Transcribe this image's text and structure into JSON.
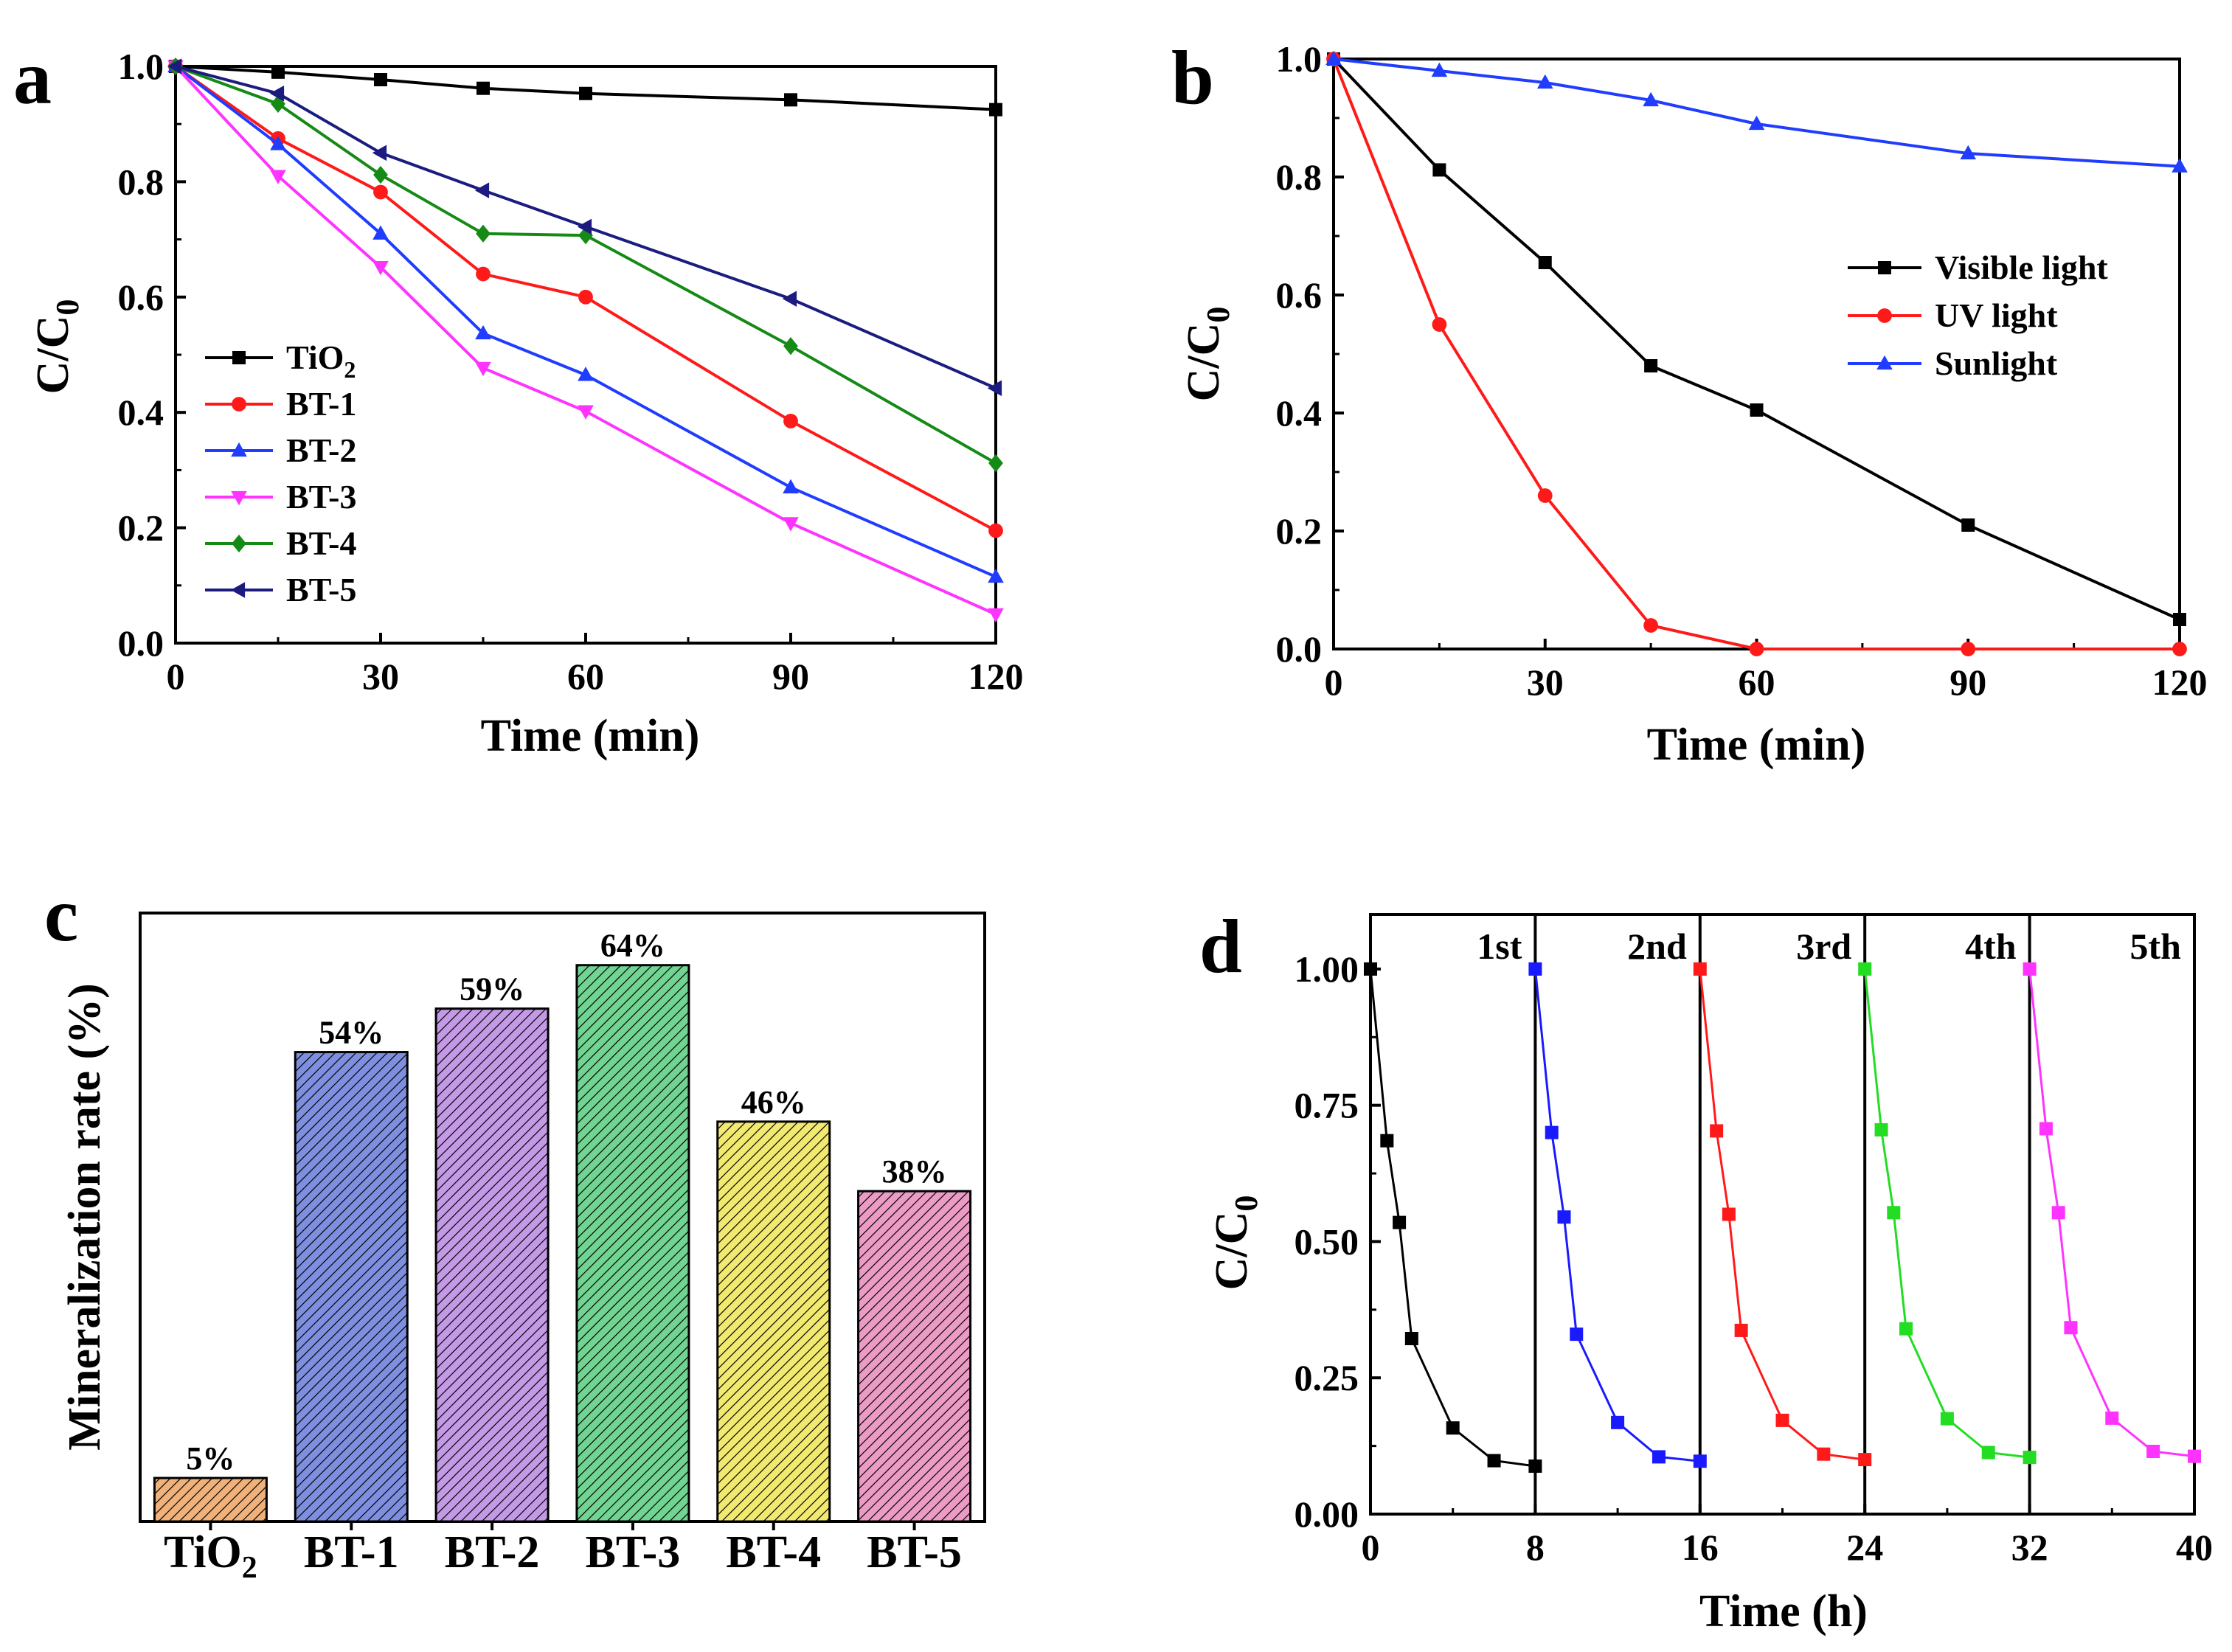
{
  "colors": {
    "black": "#000000",
    "red": "#ff1a1a",
    "blue": "#1f3cff",
    "magenta": "#ff33ff",
    "green": "#158a15",
    "navy": "#1c1c80",
    "bright_blue": "#1a1aff",
    "bright_green": "#22dd22",
    "bar_tio2": "#f0b27a",
    "bar_bt1": "#7f8fe0",
    "bar_bt2": "#c49ae6",
    "bar_bt3": "#72d492",
    "bar_bt4": "#f2ea70",
    "bar_bt5": "#ec9cc4"
  },
  "chart_data": [
    {
      "id": "a",
      "panel_label": "a",
      "type": "line",
      "xlabel": "Time (min)",
      "ylabel_main": "C/C",
      "ylabel_sub": "0",
      "xlim": [
        0,
        120
      ],
      "ylim": [
        0,
        1.0
      ],
      "xticks": [
        "0",
        "30",
        "60",
        "90",
        "120"
      ],
      "yticks": [
        "0.0",
        "0.2",
        "0.4",
        "0.6",
        "0.8",
        "1.0"
      ],
      "x": [
        0,
        15,
        30,
        45,
        60,
        90,
        120
      ],
      "legend_position": "left",
      "series": [
        {
          "name": "TiO",
          "name_sub": "2",
          "marker": "square",
          "color": "#000000",
          "values": [
            1.0,
            0.99,
            0.977,
            0.962,
            0.953,
            0.942,
            0.925
          ]
        },
        {
          "name": "BT-1",
          "marker": "circle",
          "color": "#ff1a1a",
          "values": [
            1.0,
            0.875,
            0.782,
            0.64,
            0.6,
            0.385,
            0.195
          ]
        },
        {
          "name": "BT-2",
          "marker": "triangle-up",
          "color": "#1f3cff",
          "values": [
            1.0,
            0.865,
            0.71,
            0.537,
            0.465,
            0.27,
            0.115
          ]
        },
        {
          "name": "BT-3",
          "marker": "triangle-down",
          "color": "#ff33ff",
          "values": [
            1.0,
            0.81,
            0.652,
            0.477,
            0.402,
            0.208,
            0.05
          ]
        },
        {
          "name": "BT-4",
          "marker": "diamond",
          "color": "#158a15",
          "values": [
            1.0,
            0.935,
            0.812,
            0.71,
            0.707,
            0.515,
            0.312
          ]
        },
        {
          "name": "BT-5",
          "marker": "triangle-left",
          "color": "#1c1c80",
          "values": [
            1.0,
            0.953,
            0.85,
            0.785,
            0.722,
            0.597,
            0.442
          ]
        }
      ]
    },
    {
      "id": "b",
      "panel_label": "b",
      "type": "line",
      "xlabel": "Time (min)",
      "ylabel_main": "C/C",
      "ylabel_sub": "0",
      "xlim": [
        0,
        120
      ],
      "ylim": [
        0,
        1.0
      ],
      "xticks": [
        "0",
        "30",
        "60",
        "90",
        "120"
      ],
      "yticks": [
        "0.0",
        "0.2",
        "0.4",
        "0.6",
        "0.8",
        "1.0"
      ],
      "x": [
        0,
        15,
        30,
        45,
        60,
        90,
        120
      ],
      "legend_position": "center-right",
      "series": [
        {
          "name": "Visible light",
          "marker": "square",
          "color": "#000000",
          "values": [
            1.0,
            0.812,
            0.655,
            0.48,
            0.405,
            0.21,
            0.05
          ]
        },
        {
          "name": "UV light",
          "marker": "circle",
          "color": "#ff1a1a",
          "values": [
            1.0,
            0.55,
            0.26,
            0.04,
            0.0,
            0.0,
            0.0
          ]
        },
        {
          "name": "Sunlight",
          "marker": "triangle-up",
          "color": "#1f3cff",
          "values": [
            1.0,
            0.98,
            0.96,
            0.93,
            0.89,
            0.84,
            0.818
          ]
        }
      ]
    },
    {
      "id": "c",
      "panel_label": "c",
      "type": "bar",
      "ylabel": "Mineralization rate (%)",
      "ylim": [
        0,
        70
      ],
      "categories": [
        {
          "main": "TiO",
          "sub": "2"
        },
        {
          "main": "BT-1",
          "sub": ""
        },
        {
          "main": "BT-2",
          "sub": ""
        },
        {
          "main": "BT-3",
          "sub": ""
        },
        {
          "main": "BT-4",
          "sub": ""
        },
        {
          "main": "BT-5",
          "sub": ""
        }
      ],
      "values": [
        5,
        54,
        59,
        64,
        46,
        38
      ],
      "value_labels": [
        "5%",
        "54%",
        "59%",
        "64%",
        "46%",
        "38%"
      ],
      "bar_colors": [
        "#f0b27a",
        "#7f8fe0",
        "#c49ae6",
        "#72d492",
        "#f2ea70",
        "#ec9cc4"
      ],
      "hatch": "diagonal"
    },
    {
      "id": "d",
      "panel_label": "d",
      "type": "line",
      "xlabel": "Time (h)",
      "ylabel_main": "C/C",
      "ylabel_sub": "0",
      "xlim": [
        0,
        40
      ],
      "ylim": [
        0,
        1.1
      ],
      "xticks": [
        "0",
        "8",
        "16",
        "24",
        "32",
        "40"
      ],
      "yticks": [
        "0.00",
        "0.25",
        "0.50",
        "0.75",
        "1.00"
      ],
      "ytick_values": [
        0,
        0.25,
        0.5,
        0.75,
        1.0
      ],
      "xtick_values": [
        0,
        8,
        16,
        24,
        32,
        40
      ],
      "separators": [
        8,
        16,
        24,
        32
      ],
      "cycle_labels": [
        "1st",
        "2nd",
        "3rd",
        "4th",
        "5th"
      ],
      "series": [
        {
          "name": "1st",
          "color": "#000000",
          "x": [
            0,
            0.8,
            1.4,
            2,
            4,
            6,
            8
          ],
          "values": [
            1.0,
            0.685,
            0.535,
            0.322,
            0.158,
            0.098,
            0.088
          ]
        },
        {
          "name": "2nd",
          "color": "#1a1aff",
          "x": [
            8,
            8.8,
            9.4,
            10,
            12,
            14,
            16
          ],
          "values": [
            1.0,
            0.7,
            0.545,
            0.33,
            0.168,
            0.105,
            0.097
          ]
        },
        {
          "name": "3rd",
          "color": "#ff1a1a",
          "x": [
            16,
            16.8,
            17.4,
            18,
            20,
            22,
            24
          ],
          "values": [
            1.0,
            0.703,
            0.55,
            0.337,
            0.172,
            0.11,
            0.1
          ]
        },
        {
          "name": "4th",
          "color": "#22dd22",
          "x": [
            24,
            24.8,
            25.4,
            26,
            28,
            30,
            32
          ],
          "values": [
            1.0,
            0.705,
            0.553,
            0.34,
            0.175,
            0.113,
            0.104
          ]
        },
        {
          "name": "5th",
          "color": "#ff33ff",
          "x": [
            32,
            32.8,
            33.4,
            34,
            36,
            38,
            40
          ],
          "values": [
            1.0,
            0.707,
            0.553,
            0.342,
            0.176,
            0.115,
            0.106
          ]
        }
      ]
    }
  ]
}
